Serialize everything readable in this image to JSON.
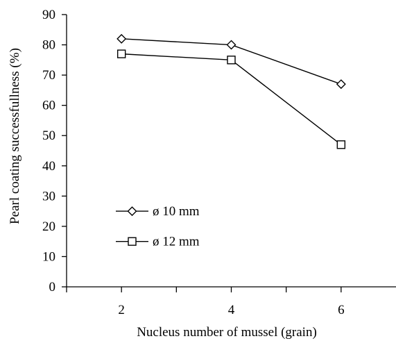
{
  "chart_data": {
    "type": "line",
    "title": "",
    "xlabel": "Nucleus number of mussel (grain)",
    "ylabel": "Pearl coating successfullness  (%)",
    "x": [
      2,
      4,
      6
    ],
    "x_tick_labels": [
      "2",
      "4",
      "6"
    ],
    "xlim": [
      1,
      7
    ],
    "ylim": [
      0,
      90
    ],
    "y_ticks": [
      0,
      10,
      20,
      30,
      40,
      50,
      60,
      70,
      80,
      90
    ],
    "grid": false,
    "legend_position": "lower-left",
    "series": [
      {
        "name": "ø 10 mm",
        "marker": "diamond",
        "values": [
          82,
          80,
          67
        ]
      },
      {
        "name": "ø 12 mm",
        "marker": "square",
        "values": [
          77,
          75,
          47
        ]
      }
    ],
    "colors": {
      "line": "#000000",
      "background": "#ffffff"
    }
  }
}
